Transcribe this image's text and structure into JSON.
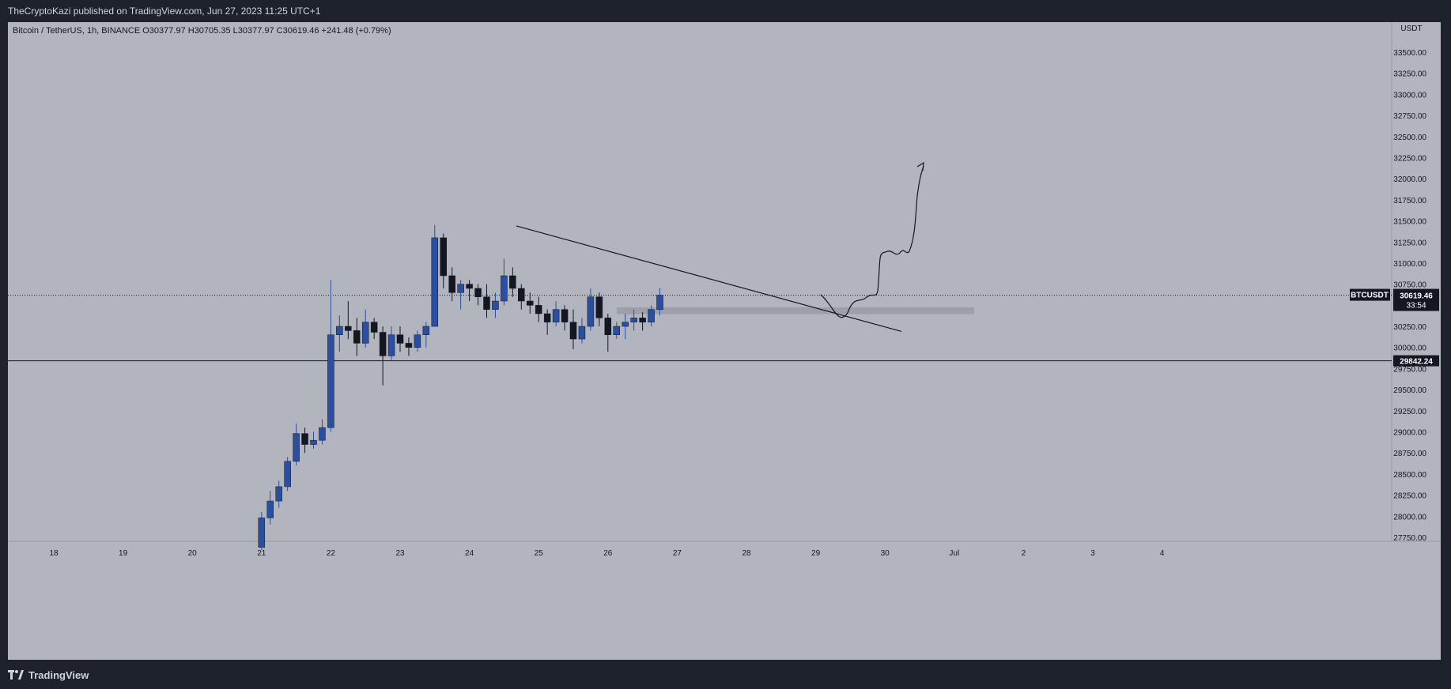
{
  "header": {
    "publisher_line": "TheCryptoKazi published on TradingView.com, Jun 27, 2023 11:25 UTC+1"
  },
  "footer": {
    "brand": "TradingView"
  },
  "chart_data": {
    "type": "candlestick",
    "title": "Bitcoin / TetherUS, 1h, BINANCE",
    "ohlc_readout": {
      "O": "30377.97",
      "H": "30705.35",
      "L": "30377.97",
      "C": "30619.46",
      "change": "+241.48 (+0.79%)"
    },
    "currency_label": "USDT",
    "y_ticks": [
      27750,
      28000,
      28250,
      28500,
      28750,
      29000,
      29250,
      29500,
      29750,
      30000,
      30250,
      30500,
      30750,
      31000,
      31250,
      31500,
      31750,
      32000,
      32250,
      32500,
      32750,
      33000,
      33250,
      33500
    ],
    "x_ticks": [
      "18",
      "19",
      "20",
      "21",
      "22",
      "23",
      "24",
      "25",
      "26",
      "27",
      "28",
      "29",
      "30",
      "Jul",
      "2",
      "3",
      "4"
    ],
    "price_tag": {
      "symbol": "BTCUSDT",
      "price": "30619.46",
      "countdown": "33:54",
      "value": 30619.46
    },
    "horizontal_line": {
      "price": "29842.24",
      "value": 29842.24
    },
    "candles": [
      [
        "21T00",
        27630,
        28050,
        27600,
        27980
      ],
      [
        "21T03",
        27980,
        28300,
        27900,
        28180
      ],
      [
        "21T06",
        28180,
        28420,
        28100,
        28350
      ],
      [
        "21T09",
        28350,
        28700,
        28300,
        28650
      ],
      [
        "21T12",
        28650,
        29100,
        28600,
        28980
      ],
      [
        "21T15",
        28980,
        29050,
        28750,
        28850
      ],
      [
        "21T18",
        28850,
        29000,
        28800,
        28900
      ],
      [
        "21T21",
        28900,
        29150,
        28850,
        29050
      ],
      [
        "22T00",
        29050,
        30800,
        29000,
        30150
      ],
      [
        "22T03",
        30150,
        30380,
        29950,
        30250
      ],
      [
        "22T06",
        30250,
        30550,
        30100,
        30200
      ],
      [
        "22T09",
        30200,
        30350,
        29900,
        30050
      ],
      [
        "22T12",
        30050,
        30450,
        30000,
        30300
      ],
      [
        "22T15",
        30300,
        30350,
        30100,
        30180
      ],
      [
        "22T18",
        30180,
        30250,
        29550,
        29900
      ],
      [
        "22T21",
        29900,
        30250,
        29850,
        30150
      ],
      [
        "23T00",
        30150,
        30250,
        29950,
        30050
      ],
      [
        "23T03",
        30050,
        30120,
        29900,
        30000
      ],
      [
        "23T06",
        30000,
        30200,
        29950,
        30150
      ],
      [
        "23T09",
        30150,
        30300,
        30000,
        30250
      ],
      [
        "23T12",
        30250,
        31450,
        30250,
        31300
      ],
      [
        "23T15",
        31300,
        31350,
        30700,
        30850
      ],
      [
        "23T18",
        30850,
        30950,
        30550,
        30650
      ],
      [
        "23T21",
        30650,
        30800,
        30450,
        30750
      ],
      [
        "24T00",
        30750,
        30800,
        30550,
        30700
      ],
      [
        "24T03",
        30700,
        30750,
        30500,
        30600
      ],
      [
        "24T06",
        30600,
        30750,
        30350,
        30450
      ],
      [
        "24T09",
        30450,
        30650,
        30350,
        30550
      ],
      [
        "24T12",
        30550,
        31050,
        30500,
        30850
      ],
      [
        "24T15",
        30850,
        30950,
        30600,
        30700
      ],
      [
        "24T18",
        30700,
        30750,
        30450,
        30550
      ],
      [
        "24T21",
        30550,
        30650,
        30400,
        30500
      ],
      [
        "25T00",
        30500,
        30600,
        30300,
        30400
      ],
      [
        "25T03",
        30400,
        30450,
        30150,
        30300
      ],
      [
        "25T06",
        30300,
        30550,
        30250,
        30450
      ],
      [
        "25T09",
        30450,
        30500,
        30200,
        30300
      ],
      [
        "25T12",
        30300,
        30450,
        29980,
        30100
      ],
      [
        "25T15",
        30100,
        30350,
        30050,
        30250
      ],
      [
        "25T18",
        30250,
        30700,
        30200,
        30600
      ],
      [
        "25T21",
        30600,
        30650,
        30250,
        30350
      ],
      [
        "26T00",
        30350,
        30400,
        29950,
        30150
      ],
      [
        "26T03",
        30150,
        30300,
        30100,
        30250
      ],
      [
        "26T06",
        30250,
        30400,
        30100,
        30300
      ],
      [
        "26T09",
        30300,
        30450,
        30200,
        30350
      ],
      [
        "26T12",
        30350,
        30420,
        30200,
        30300
      ],
      [
        "26T15",
        30300,
        30500,
        30250,
        30450
      ],
      [
        "26T18",
        30450,
        30705,
        30378,
        30619
      ]
    ]
  }
}
